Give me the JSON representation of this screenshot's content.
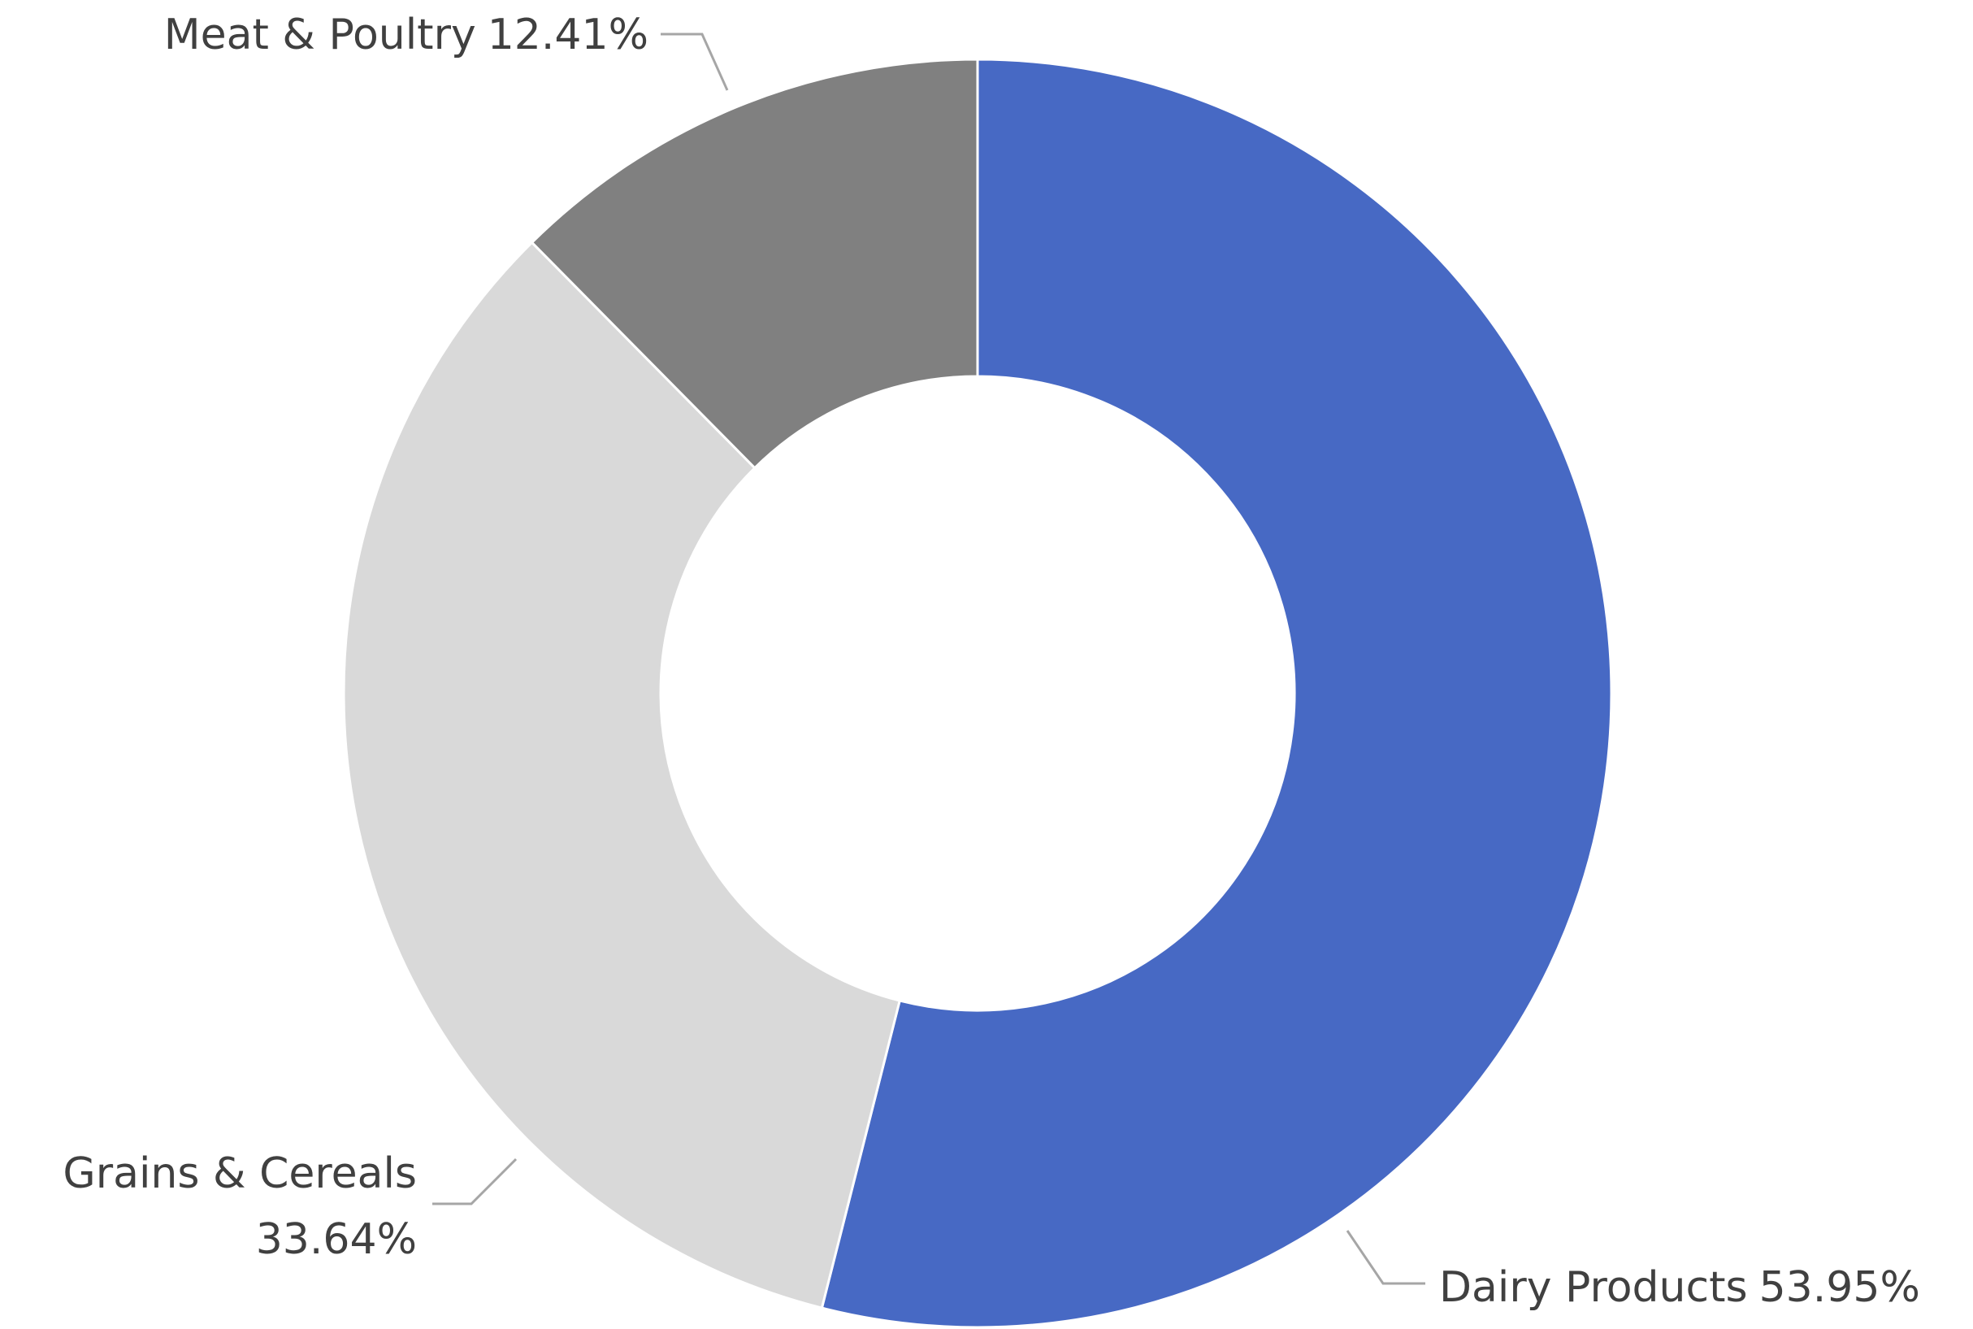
{
  "chart_data": {
    "type": "donut",
    "categories": [
      "Dairy Products",
      "Grains & Cereals",
      "Meat & Poultry"
    ],
    "values": [
      53.95,
      33.64,
      12.41
    ],
    "value_labels": [
      "53.95%",
      "33.64%",
      "12.41%"
    ],
    "colors": [
      "#4769c4",
      "#d9d9d9",
      "#808080"
    ]
  }
}
